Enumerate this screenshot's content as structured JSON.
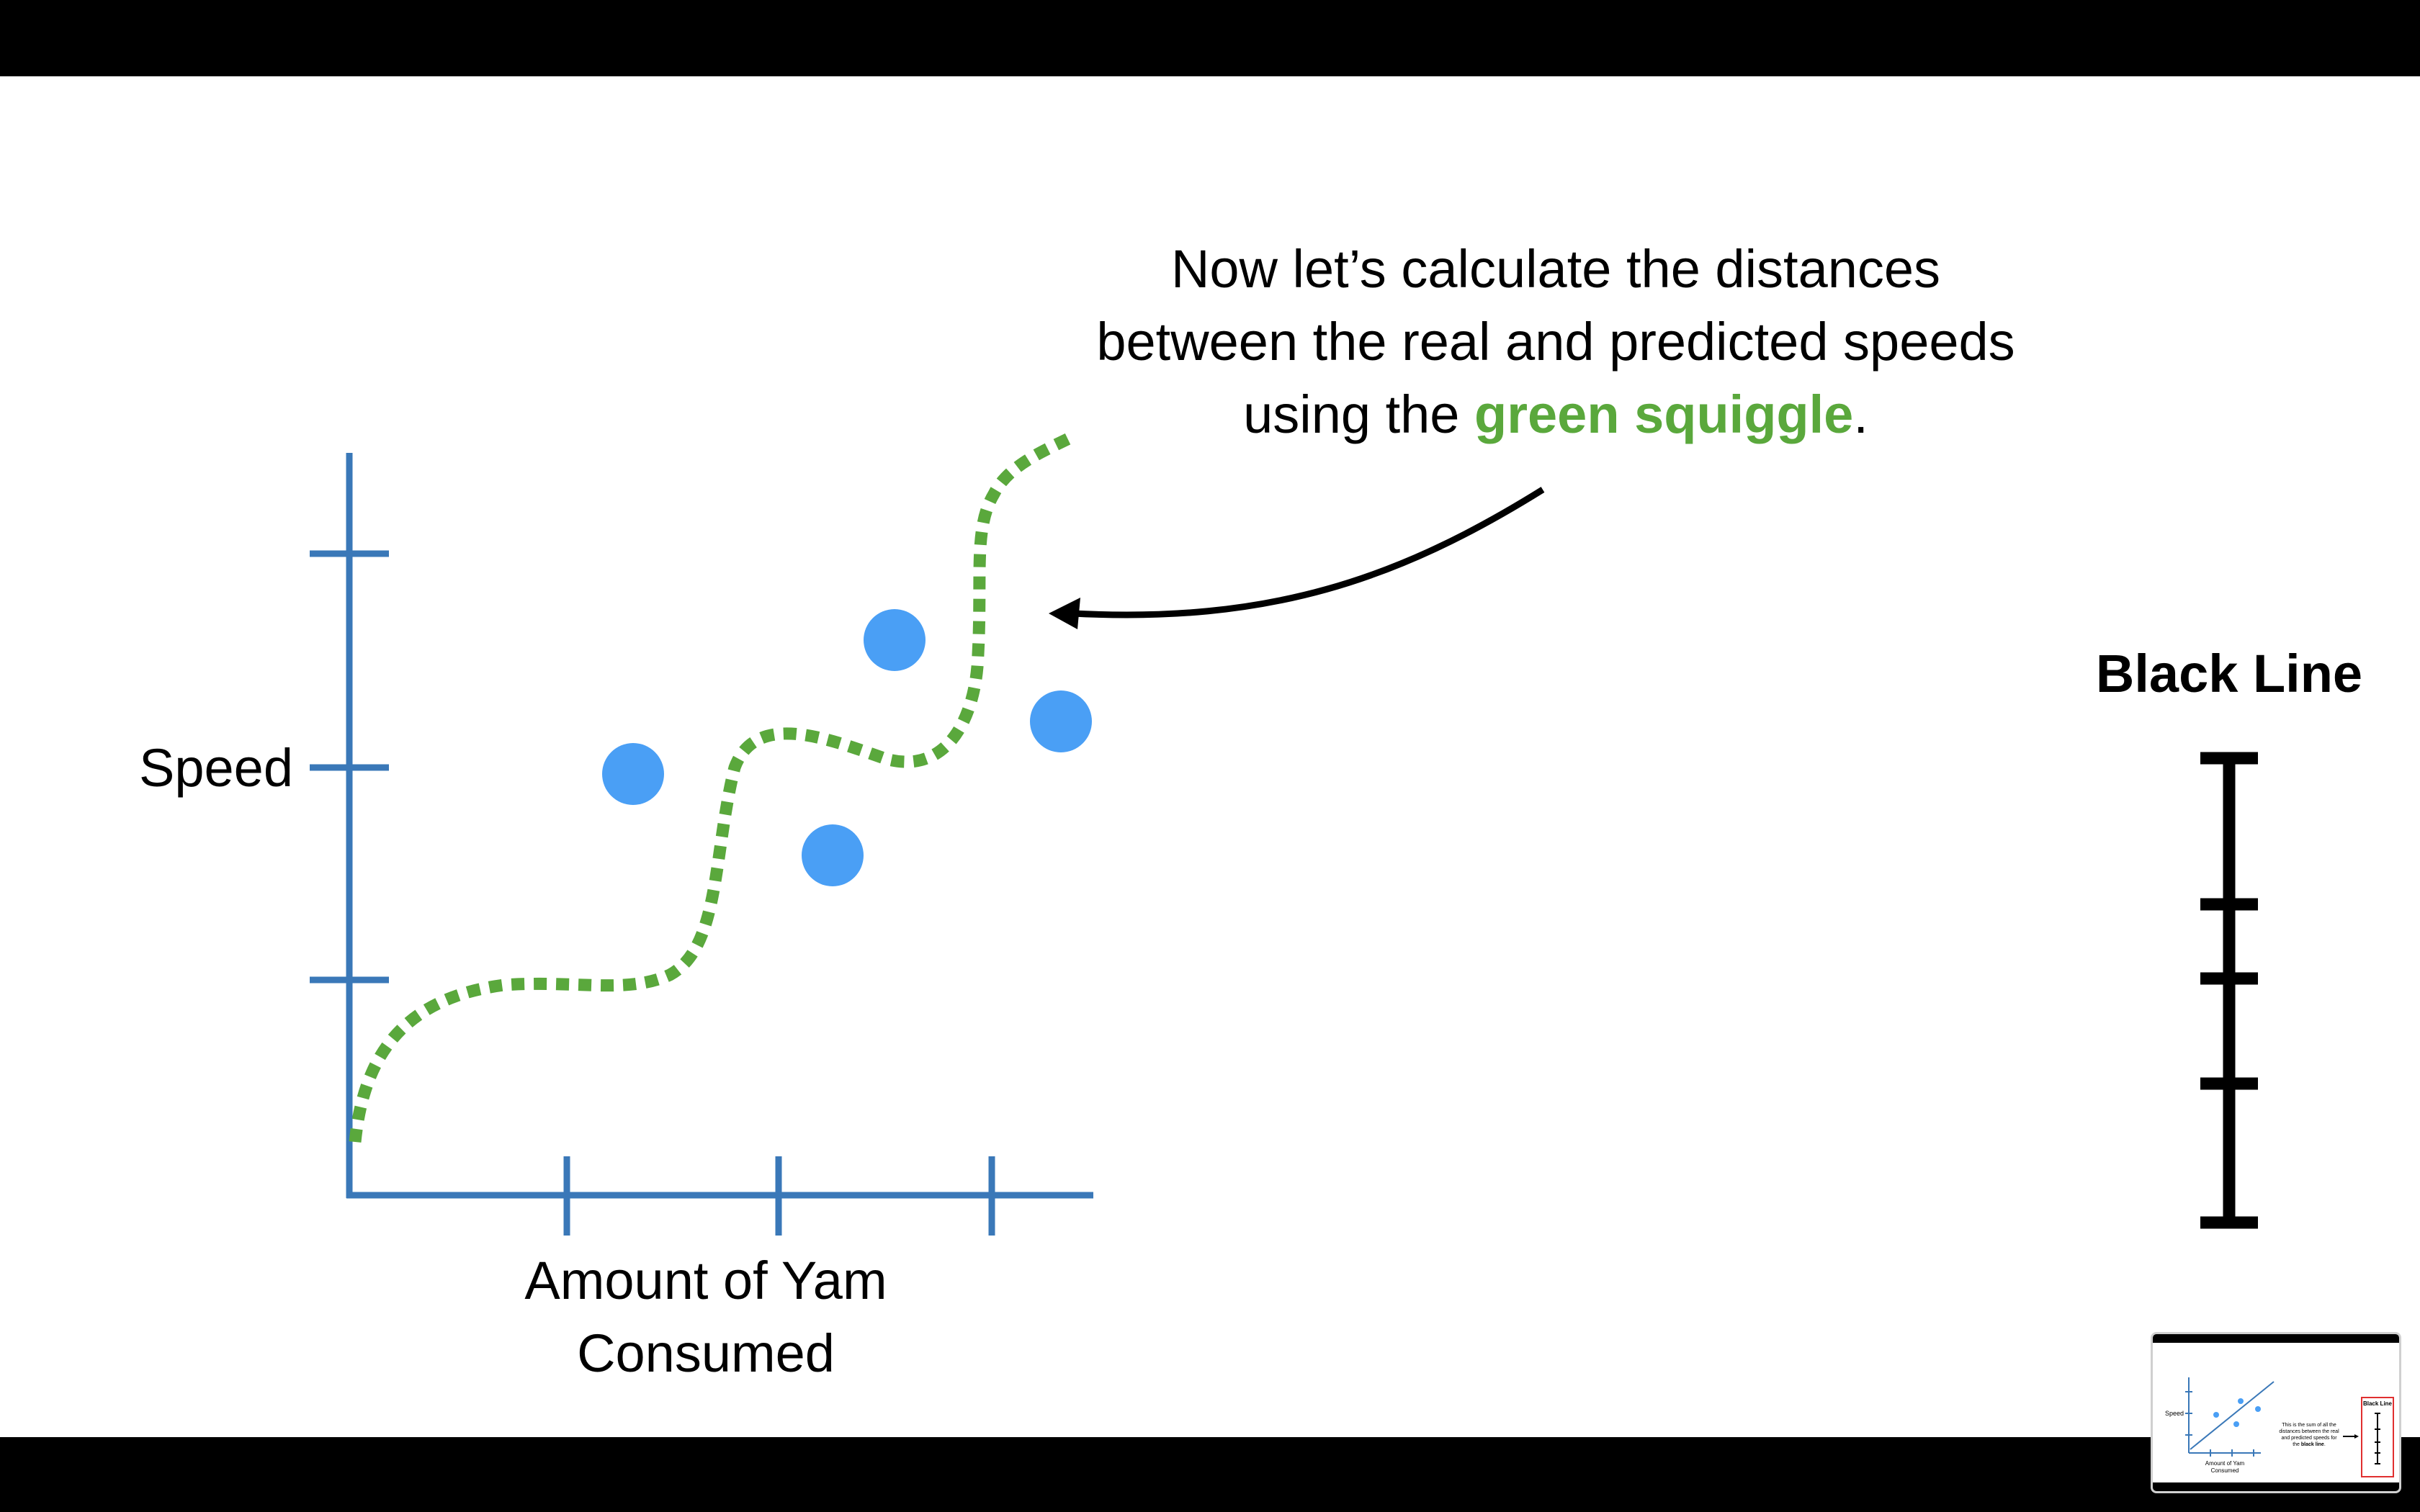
{
  "annotation": {
    "line1": "Now let’s calculate the distances",
    "line2": "between the real and predicted speeds",
    "line3_prefix": "using the ",
    "line3_highlight": "green squiggle",
    "line3_suffix": "."
  },
  "axes": {
    "y_label": "Speed",
    "x_label_line1": "Amount of Yam",
    "x_label_line2": "Consumed"
  },
  "right_panel": {
    "title": "Black Line"
  },
  "thumbnail": {
    "y_label": "Speed",
    "x_label_line1": "Amount of Yam",
    "x_label_line2": "Consumed",
    "caption_line1": "This is the sum of all the",
    "caption_line2": "distances between the real",
    "caption_line3": "and predicted speeds for",
    "caption_line4_prefix": "the ",
    "caption_line4_bold": "black line",
    "caption_line4_suffix": ".",
    "panel_title": "Black Line"
  },
  "colors": {
    "axis": "#3a78b8",
    "point": "#4a9ff5",
    "squiggle": "#5aa83c",
    "highlight_text": "#5aa83c",
    "text": "#000000",
    "thumb_border_red": "#e03030"
  }
}
